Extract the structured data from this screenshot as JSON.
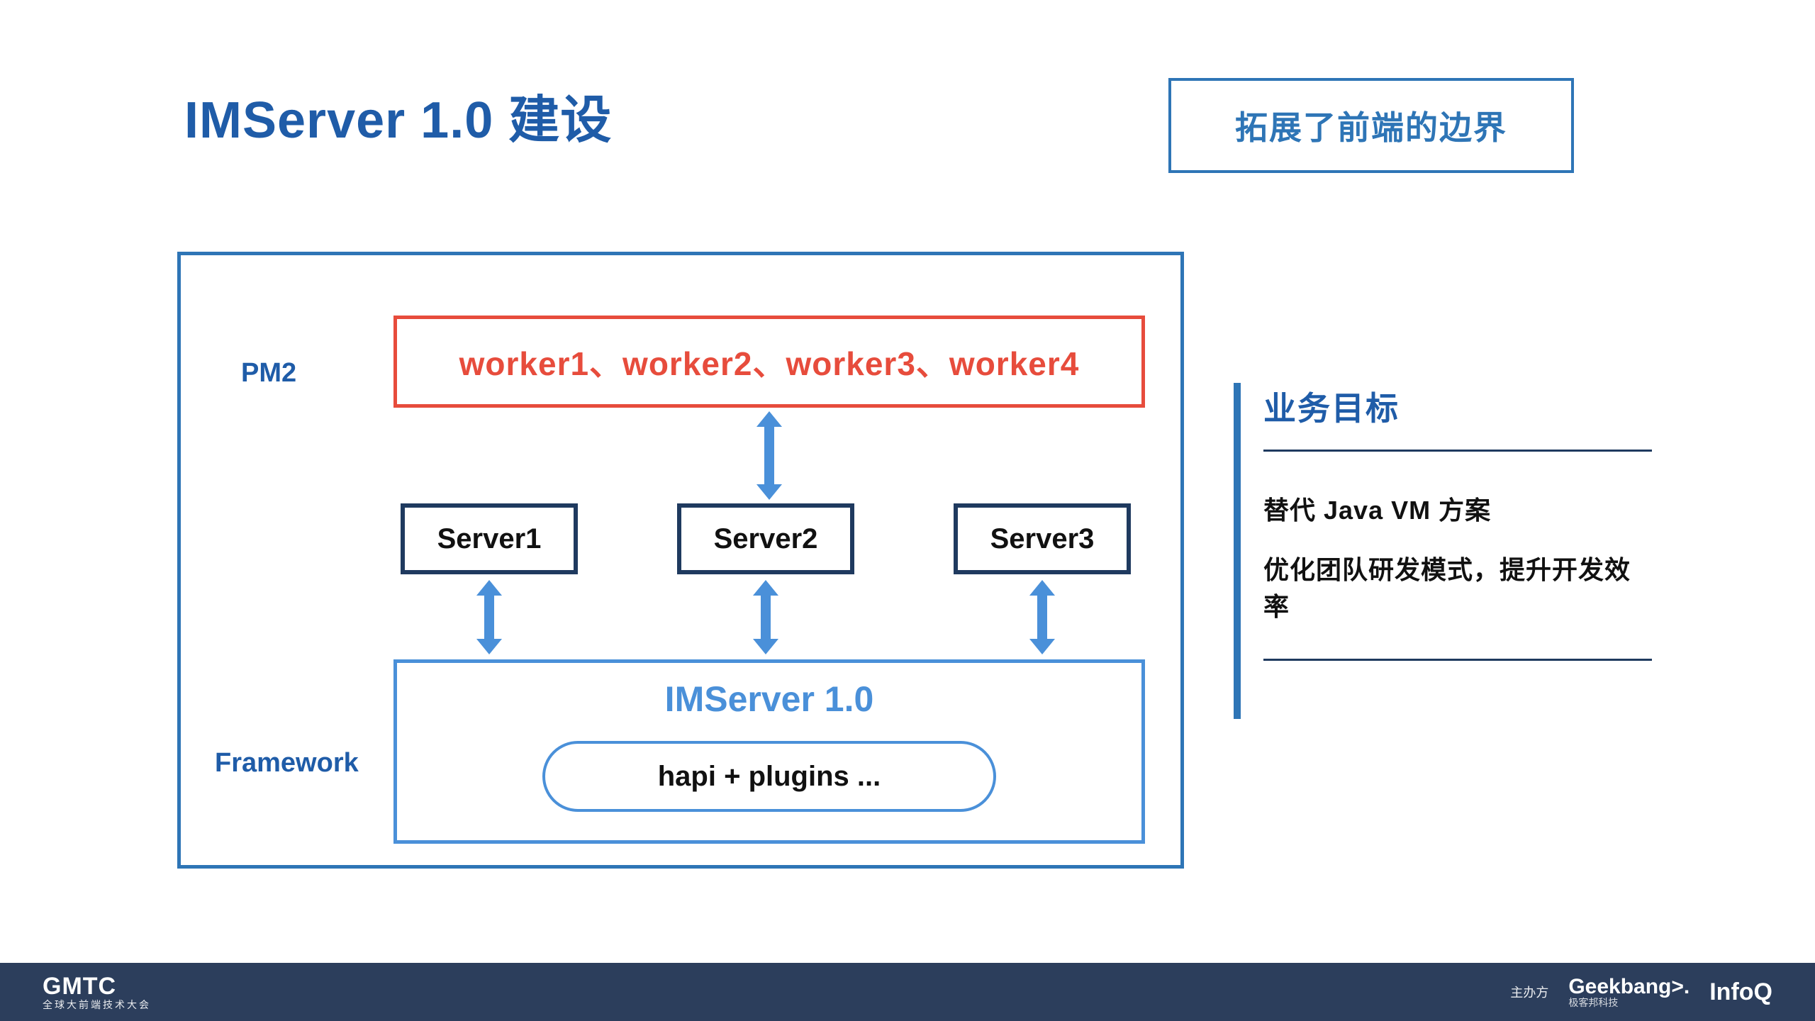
{
  "colors": {
    "primary_blue": "#1f5ca8",
    "border_blue": "#2e75b6",
    "light_blue": "#4a90d9",
    "dark_navy": "#1f3a5f",
    "red": "#e74c3c",
    "footer_bg": "#2c3e5c",
    "text_dark": "#111111",
    "white": "#ffffff"
  },
  "header": {
    "title": "IMServer 1.0 建设",
    "title_color": "#1f5ca8",
    "callout": "拓展了前端的边界",
    "callout_color": "#2e75b6"
  },
  "diagram": {
    "outer_border_color": "#2e75b6",
    "labels": {
      "pm2": "PM2",
      "framework": "Framework",
      "label_color": "#1f5ca8"
    },
    "worker_box": {
      "text": "worker1、worker2、worker3、worker4",
      "border_color": "#e74c3c",
      "text_color": "#e74c3c"
    },
    "servers": [
      {
        "label": "Server1"
      },
      {
        "label": "Server2"
      },
      {
        "label": "Server3"
      }
    ],
    "server_box": {
      "border_color": "#1f3a5f",
      "text_color": "#111111"
    },
    "imserver_box": {
      "title": "IMServer 1.0",
      "title_color": "#4a90d9",
      "border_color": "#4a90d9",
      "inner": {
        "label": "hapi + plugins ...",
        "border_color": "#4a90d9"
      }
    },
    "arrow_color": "#4a90d9"
  },
  "sidebar": {
    "bar_color": "#2e75b6",
    "title": "业务目标",
    "title_color": "#1f5ca8",
    "divider_color": "#1f3a5f",
    "items": [
      "替代 Java VM 方案",
      "优化团队研发模式，提升开发效率"
    ]
  },
  "footer": {
    "background": "#2c3e5c",
    "left_logo": "GMTC",
    "left_sub": "全球大前端技术大会",
    "host_label": "主办方",
    "geekbang": "Geekbang>.",
    "geekbang_sub": "极客邦科技",
    "infoq": "InfoQ"
  }
}
